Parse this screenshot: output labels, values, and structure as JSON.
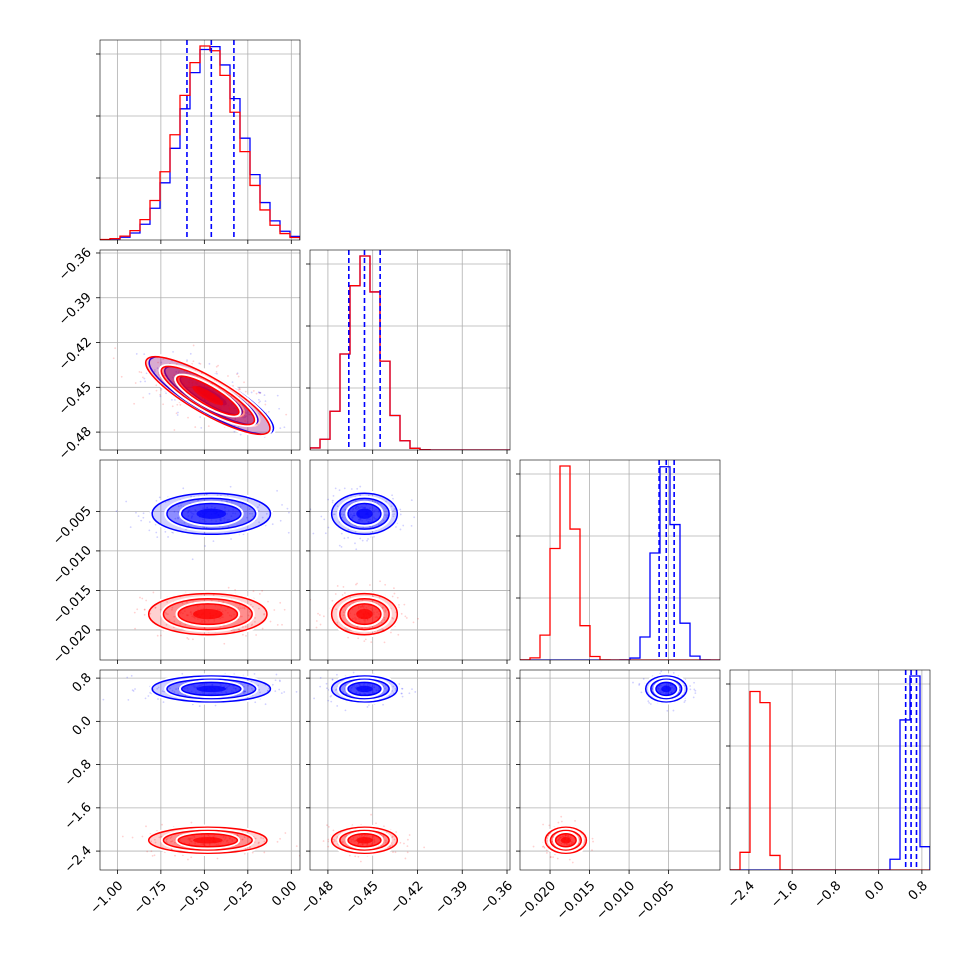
{
  "chart_data": {
    "type": "corner",
    "grid": true,
    "params": [
      {
        "range": [
          -1.1,
          0.05
        ],
        "ticks": [
          -1.0,
          -0.75,
          -0.5,
          -0.25,
          0.0
        ],
        "tick_labels": [
          "−1.00",
          "−0.75",
          "−0.50",
          "−0.25",
          "0.00"
        ]
      },
      {
        "range": [
          -0.492,
          -0.358
        ],
        "ticks": [
          -0.48,
          -0.45,
          -0.42,
          -0.39,
          -0.36
        ],
        "tick_labels": [
          "−0.48",
          "−0.45",
          "−0.42",
          "−0.39",
          "−0.36"
        ]
      },
      {
        "range": [
          -0.0238,
          0.0015
        ],
        "ticks": [
          -0.02,
          -0.015,
          -0.01,
          -0.005
        ],
        "tick_labels": [
          "−0.020",
          "−0.015",
          "−0.010",
          "−0.005"
        ]
      },
      {
        "range": [
          -2.75,
          0.95
        ],
        "ticks": [
          -2.4,
          -1.6,
          -0.8,
          0.0,
          0.8
        ],
        "tick_labels": [
          "−2.4",
          "−1.6",
          "−0.8",
          "0.0",
          "0.8"
        ]
      }
    ],
    "series": [
      {
        "color": "#0000ff",
        "mean": [
          -0.46,
          -0.4555,
          -0.0053,
          0.6
        ],
        "sigma": [
          0.17,
          0.011,
          0.0013,
          0.12
        ],
        "quantiles": [
          [
            -0.6,
            -0.46,
            -0.33
          ],
          [
            -0.466,
            -0.4555,
            -0.445
          ],
          [
            -0.0062,
            -0.0053,
            -0.0043
          ],
          [
            0.5,
            0.6,
            0.7
          ]
        ]
      },
      {
        "color": "#ff0000",
        "mean": [
          -0.48,
          -0.4555,
          -0.018,
          -2.2
        ],
        "sigma": [
          0.17,
          0.011,
          0.0013,
          0.12
        ],
        "quantiles": []
      }
    ],
    "quantile_color": "#0000ff"
  }
}
